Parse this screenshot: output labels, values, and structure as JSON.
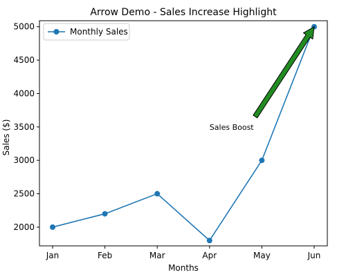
{
  "chart_data": {
    "type": "line",
    "title": "Arrow Demo - Sales Increase Highlight",
    "xlabel": "Months",
    "ylabel": "Sales ($)",
    "categories": [
      "Jan",
      "Feb",
      "Mar",
      "Apr",
      "May",
      "Jun"
    ],
    "series": [
      {
        "name": "Monthly Sales",
        "values": [
          2000,
          2200,
          2500,
          1800,
          3000,
          5000
        ],
        "color": "#1f77b4",
        "marker": "circle"
      }
    ],
    "ylim": [
      1720,
      5090
    ],
    "yticks": [
      2000,
      2500,
      3000,
      3500,
      4000,
      4500,
      5000
    ],
    "grid": false,
    "legend": {
      "position": "top-left",
      "entries": [
        "Monthly Sales"
      ]
    },
    "annotation": {
      "text": "Sales Boost",
      "text_x": "Apr",
      "text_y": 3500,
      "arrow_target_x": "Jun",
      "arrow_target_y": 5000,
      "arrow_color": "#228b22",
      "arrow_edge_color": "#000000"
    }
  }
}
